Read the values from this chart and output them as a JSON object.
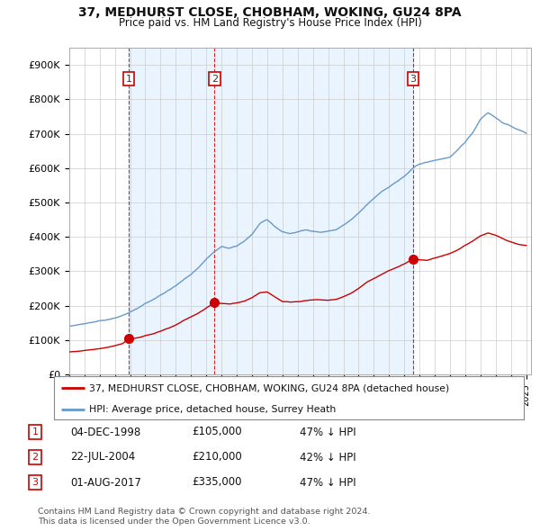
{
  "title": "37, MEDHURST CLOSE, CHOBHAM, WOKING, GU24 8PA",
  "subtitle": "Price paid vs. HM Land Registry's House Price Index (HPI)",
  "background_color": "#ffffff",
  "plot_bg_color": "#ffffff",
  "grid_color": "#cccccc",
  "red_color": "#cc0000",
  "blue_color": "#6699cc",
  "shade_color": "#ddeeff",
  "ylim": [
    0,
    950000
  ],
  "yticks": [
    0,
    100000,
    200000,
    300000,
    400000,
    500000,
    600000,
    700000,
    800000,
    900000
  ],
  "ytick_labels": [
    "£0",
    "£100K",
    "£200K",
    "£300K",
    "£400K",
    "£500K",
    "£600K",
    "£700K",
    "£800K",
    "£900K"
  ],
  "transactions": [
    {
      "num": 1,
      "date": "04-DEC-1998",
      "price": 105000,
      "pct": "47% ↓ HPI",
      "x_year": 1998.92
    },
    {
      "num": 2,
      "date": "22-JUL-2004",
      "price": 210000,
      "pct": "42% ↓ HPI",
      "x_year": 2004.55
    },
    {
      "num": 3,
      "date": "01-AUG-2017",
      "price": 335000,
      "pct": "47% ↓ HPI",
      "x_year": 2017.58
    }
  ],
  "legend_red": "37, MEDHURST CLOSE, CHOBHAM, WOKING, GU24 8PA (detached house)",
  "legend_blue": "HPI: Average price, detached house, Surrey Heath",
  "footer1": "Contains HM Land Registry data © Crown copyright and database right 2024.",
  "footer2": "This data is licensed under the Open Government Licence v3.0.",
  "xlim_start": 1995.0,
  "xlim_end": 2025.3
}
